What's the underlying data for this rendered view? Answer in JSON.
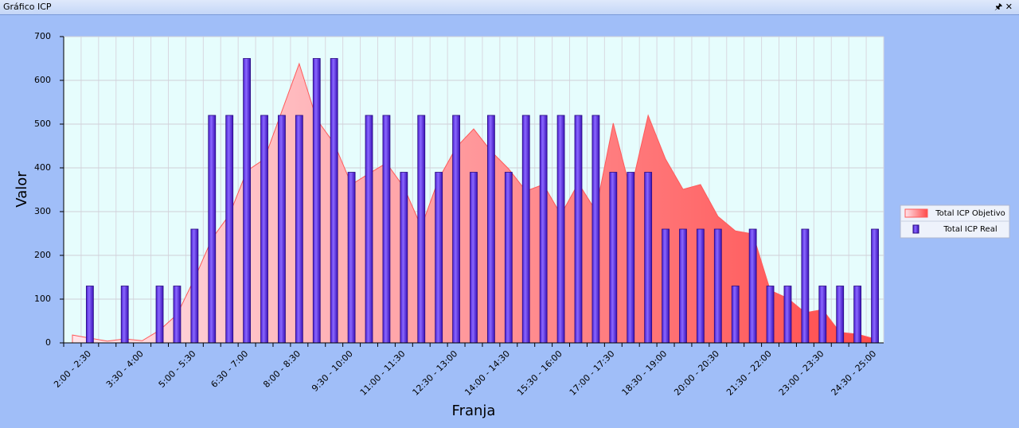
{
  "window_title": "Gráfico ICP",
  "chart_data": {
    "type": "bar_area",
    "x_label": "Franja",
    "y_label": "Valor",
    "categories": [
      null,
      "2:00 - 2:30",
      null,
      null,
      "3:30 - 4:00",
      null,
      null,
      "5:00 - 5:30",
      null,
      null,
      "6:30 - 7:00",
      null,
      null,
      "8:00 - 8:30",
      null,
      null,
      "9:30 - 10:00",
      null,
      null,
      "11:00 - 11:30",
      null,
      null,
      "12:30 - 13:00",
      null,
      null,
      "14:00 - 14:30",
      null,
      null,
      "15:30 - 16:00",
      null,
      null,
      "17:00 - 17:30",
      null,
      null,
      "18:30 - 19:00",
      null,
      null,
      "20:00 - 20:30",
      null,
      null,
      "21:30 - 22:00",
      null,
      null,
      "23:00 - 23:30",
      null,
      null,
      "24:30 - 25:00"
    ],
    "series": [
      {
        "name": "Total ICP Objetivo",
        "type": "area",
        "color": "#ff5a5a",
        "values": [
          18,
          11,
          4,
          9,
          5,
          29,
          65,
          147,
          238,
          293,
          393,
          420,
          529,
          638,
          511,
          456,
          362,
          387,
          411,
          356,
          265,
          375,
          447,
          489,
          438,
          398,
          347,
          362,
          293,
          365,
          302,
          502,
          347,
          520,
          420,
          351,
          362,
          289,
          256,
          249,
          120,
          102,
          69,
          76,
          24,
          20,
          9
        ]
      },
      {
        "name": "Total ICP Real",
        "type": "bar",
        "color": "#6a3cf0",
        "values": [
          0,
          130,
          0,
          130,
          0,
          130,
          130,
          260,
          520,
          520,
          650,
          520,
          520,
          520,
          650,
          650,
          390,
          520,
          520,
          390,
          520,
          390,
          520,
          390,
          520,
          390,
          520,
          520,
          520,
          520,
          520,
          390,
          390,
          390,
          260,
          260,
          260,
          260,
          130,
          260,
          130,
          130,
          260,
          130,
          130,
          130,
          260
        ]
      }
    ],
    "ylim": [
      0,
      700
    ],
    "yticks": [
      0,
      100,
      200,
      300,
      400,
      500,
      600,
      700
    ],
    "grid": true,
    "legend": "right"
  }
}
